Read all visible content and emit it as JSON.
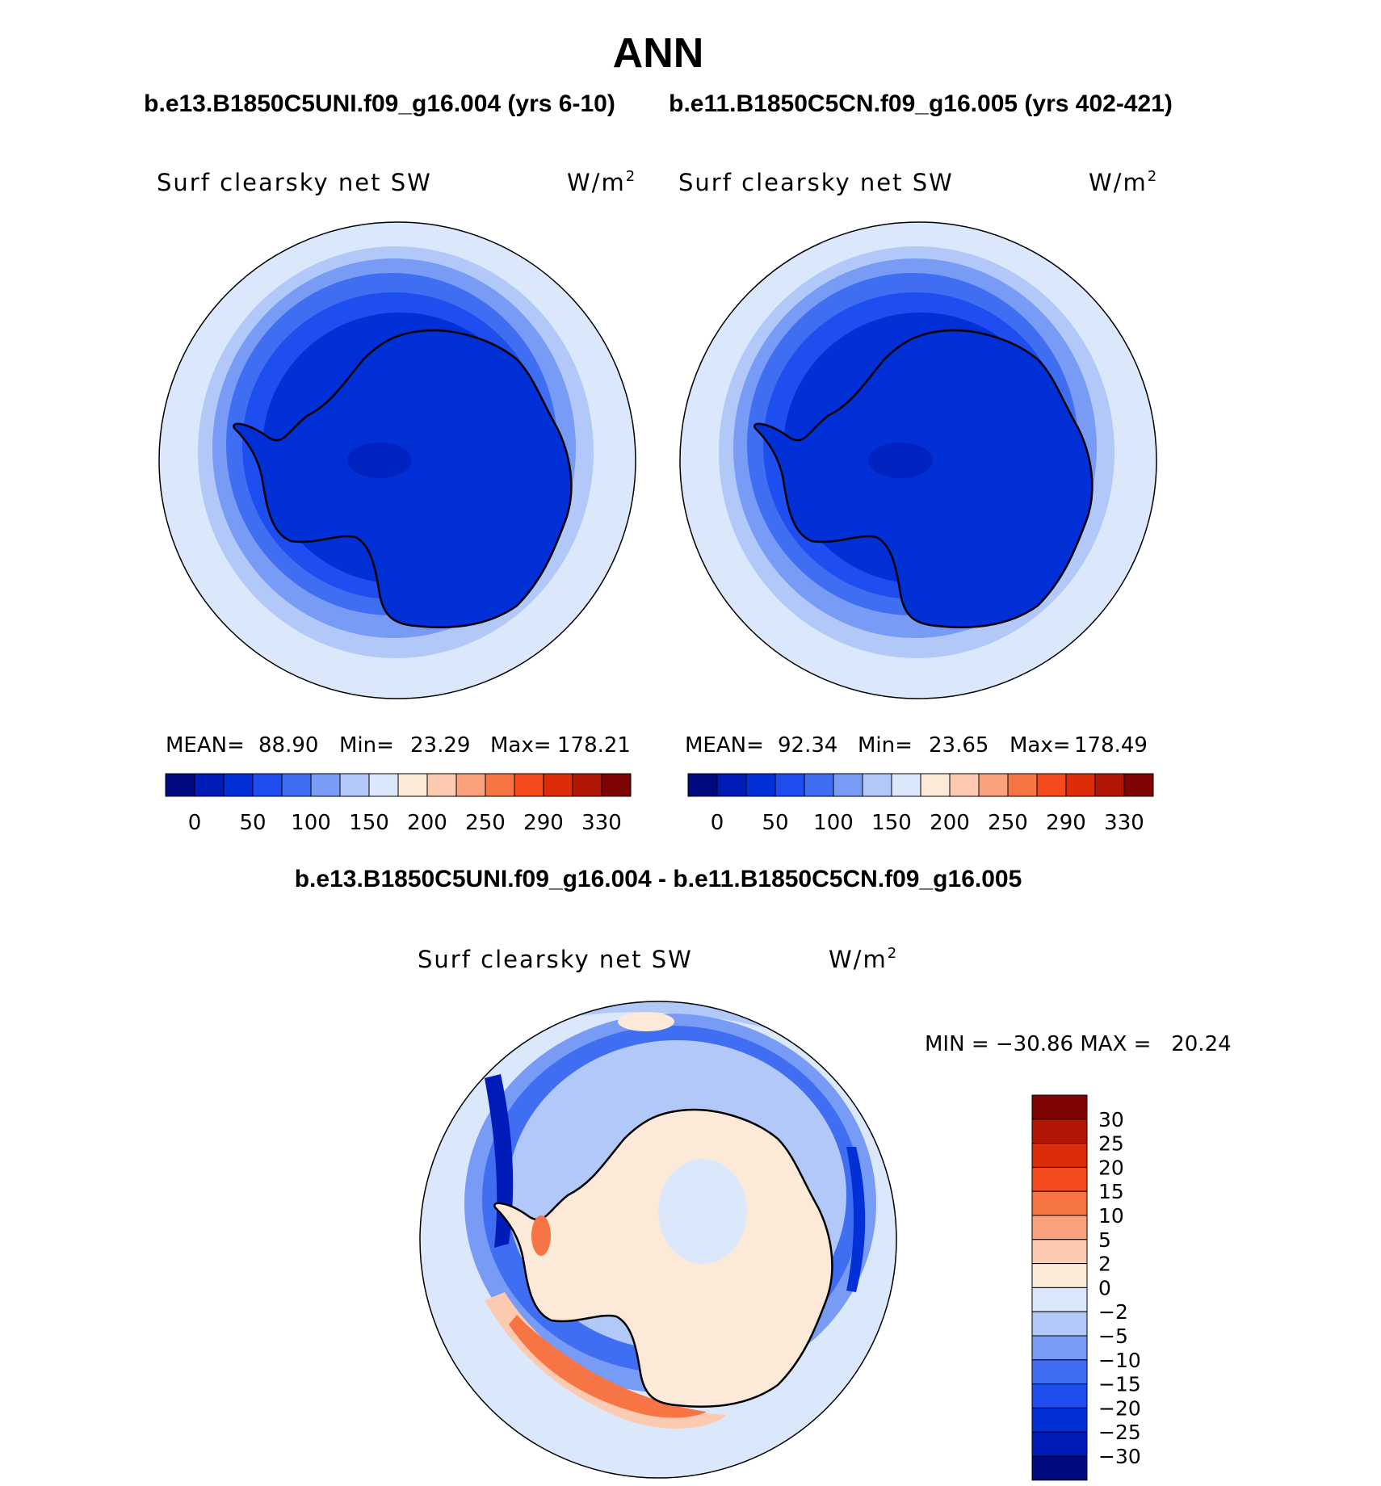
{
  "chart_data": {
    "type": "contour-map",
    "title": "ANN",
    "diff_title": "b.e13.B1850C5UNI.f09_g16.004 - b.e11.B1850C5CN.f09_g16.005",
    "panels": [
      {
        "case": "b.e13.B1850C5UNI.f09_g16.004 (yrs 6-10)",
        "variable": "Surf clearsky net SW",
        "units_base": "W/m",
        "units_exp": "2",
        "stats": {
          "mean_label": "MEAN=",
          "mean": "88.90",
          "min_label": "Min=",
          "min": "23.29",
          "max_label": "Max=",
          "max": "178.21"
        }
      },
      {
        "case": "b.e11.B1850C5CN.f09_g16.005 (yrs 402-421)",
        "variable": "Surf clearsky net SW",
        "units_base": "W/m",
        "units_exp": "2",
        "stats": {
          "mean_label": "MEAN=",
          "mean": "92.34",
          "min_label": "Min=",
          "min": "23.65",
          "max_label": "Max=",
          "max": "178.49"
        }
      }
    ],
    "abs_colorbar": {
      "colors": [
        "#000a7f",
        "#001cb8",
        "#0030d6",
        "#1f4ef0",
        "#3f6ef2",
        "#789bf5",
        "#b2c8f8",
        "#dbe8fb",
        "#fde9d8",
        "#fccab0",
        "#f9a07c",
        "#f77445",
        "#f54a1c",
        "#dc2c0a",
        "#b01705",
        "#7d0402"
      ],
      "tick_labels": [
        "0",
        "50",
        "100",
        "150",
        "200",
        "250",
        "290",
        "330"
      ]
    },
    "diff": {
      "variable": "Surf clearsky net SW",
      "units_base": "W/m",
      "units_exp": "2",
      "min_max_text": "MIN = −30.86 MAX =   20.24",
      "levels": [
        "30",
        "25",
        "20",
        "15",
        "10",
        "5",
        "2",
        "0",
        "−2",
        "−5",
        "−10",
        "−15",
        "−20",
        "−25",
        "−30"
      ],
      "colors": [
        "#7d0402",
        "#b01705",
        "#dc2c0a",
        "#f54a1c",
        "#f77445",
        "#f9a07c",
        "#fccab0",
        "#fde9d8",
        "#dbe8fb",
        "#b2c8f8",
        "#789bf5",
        "#3f6ef2",
        "#1f4ef0",
        "#0030d6",
        "#001cb8",
        "#000a7f"
      ]
    }
  }
}
